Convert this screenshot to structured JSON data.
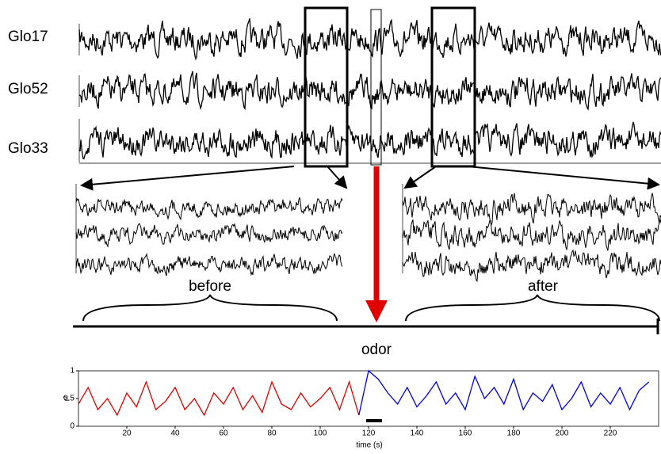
{
  "labels": {
    "traces": [
      "Glo17",
      "Glo52",
      "Glo33"
    ],
    "before": "before",
    "after": "after",
    "stimulus": "odor"
  },
  "chart_data": {
    "type": "line",
    "xlabel": "time (s)",
    "ylabel": "r²",
    "xlim": [
      0,
      240
    ],
    "ylim": [
      0,
      1
    ],
    "xticks": [
      20,
      40,
      60,
      80,
      100,
      120,
      140,
      160,
      180,
      200,
      220
    ],
    "yticks": [
      0,
      0.5,
      1
    ],
    "x": [
      0,
      4,
      8,
      12,
      16,
      20,
      24,
      28,
      32,
      36,
      40,
      44,
      48,
      52,
      56,
      60,
      64,
      68,
      72,
      76,
      80,
      84,
      88,
      92,
      96,
      100,
      104,
      108,
      112,
      116,
      120,
      124,
      128,
      132,
      136,
      140,
      144,
      148,
      152,
      156,
      160,
      164,
      168,
      172,
      176,
      180,
      184,
      188,
      192,
      196,
      200,
      204,
      208,
      212,
      216,
      220,
      224,
      228,
      232,
      236
    ],
    "series": [
      {
        "name": "before",
        "color": "#e00000",
        "values": [
          0.4,
          0.7,
          0.3,
          0.5,
          0.2,
          0.6,
          0.35,
          0.8,
          0.3,
          0.45,
          0.7,
          0.3,
          0.5,
          0.2,
          0.6,
          0.4,
          0.7,
          0.3,
          0.55,
          0.25,
          0.8,
          0.4,
          0.3,
          0.6,
          0.35,
          0.5,
          0.7,
          0.3,
          0.8,
          0.2,
          null,
          null,
          null,
          null,
          null,
          null,
          null,
          null,
          null,
          null,
          null,
          null,
          null,
          null,
          null,
          null,
          null,
          null,
          null,
          null,
          null,
          null,
          null,
          null,
          null,
          null,
          null,
          null,
          null,
          null
        ]
      },
      {
        "name": "after",
        "color": "#0000e0",
        "values": [
          null,
          null,
          null,
          null,
          null,
          null,
          null,
          null,
          null,
          null,
          null,
          null,
          null,
          null,
          null,
          null,
          null,
          null,
          null,
          null,
          null,
          null,
          null,
          null,
          null,
          null,
          null,
          null,
          null,
          0.2,
          1.0,
          0.85,
          0.6,
          0.4,
          0.7,
          0.35,
          0.55,
          0.8,
          0.4,
          0.6,
          0.3,
          0.9,
          0.5,
          0.7,
          0.4,
          0.85,
          0.3,
          0.6,
          0.45,
          0.75,
          0.3,
          0.5,
          0.8,
          0.35,
          0.6,
          0.4,
          0.7,
          0.3,
          0.65,
          0.8
        ]
      }
    ]
  }
}
